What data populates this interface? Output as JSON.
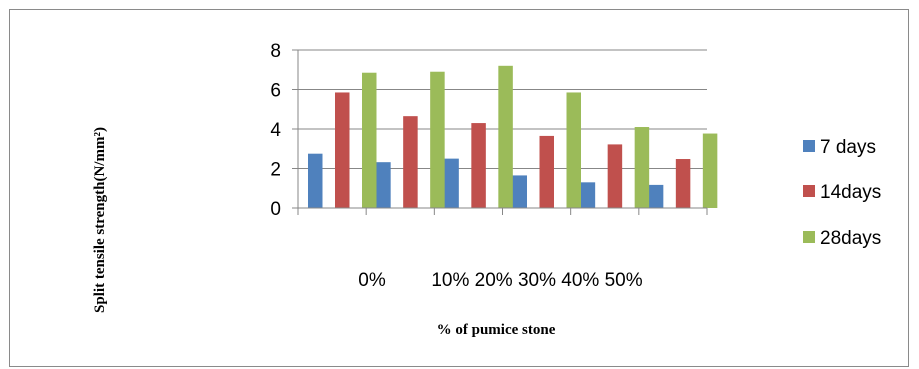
{
  "chart_data": {
    "type": "bar",
    "title": "",
    "xlabel": "% of pumice stone",
    "ylabel": "Split tensile strength(N/mm²)",
    "ylim": [
      0,
      8
    ],
    "yticks": [
      0,
      2,
      4,
      6,
      8
    ],
    "grid": true,
    "legend_position": "right",
    "categories": [
      "0%",
      "10%",
      "20%",
      "30%",
      "40%",
      "50%"
    ],
    "category_label_text": [
      "0%",
      "10% 20% 30% 40% 50%"
    ],
    "series": [
      {
        "name": "7 days",
        "legend_text": "7 days",
        "color": "#4f81bd",
        "values": [
          2.75,
          2.32,
          2.5,
          1.65,
          1.3,
          1.17
        ]
      },
      {
        "name": "14days",
        "legend_text": "14days",
        "color": "#c0504d",
        "values": [
          5.85,
          4.65,
          4.3,
          3.65,
          3.22,
          2.48
        ]
      },
      {
        "name": "28days",
        "legend_text": "28days",
        "color": "#9bbb59",
        "values": [
          6.85,
          6.9,
          7.2,
          5.85,
          4.1,
          3.77
        ]
      }
    ]
  }
}
